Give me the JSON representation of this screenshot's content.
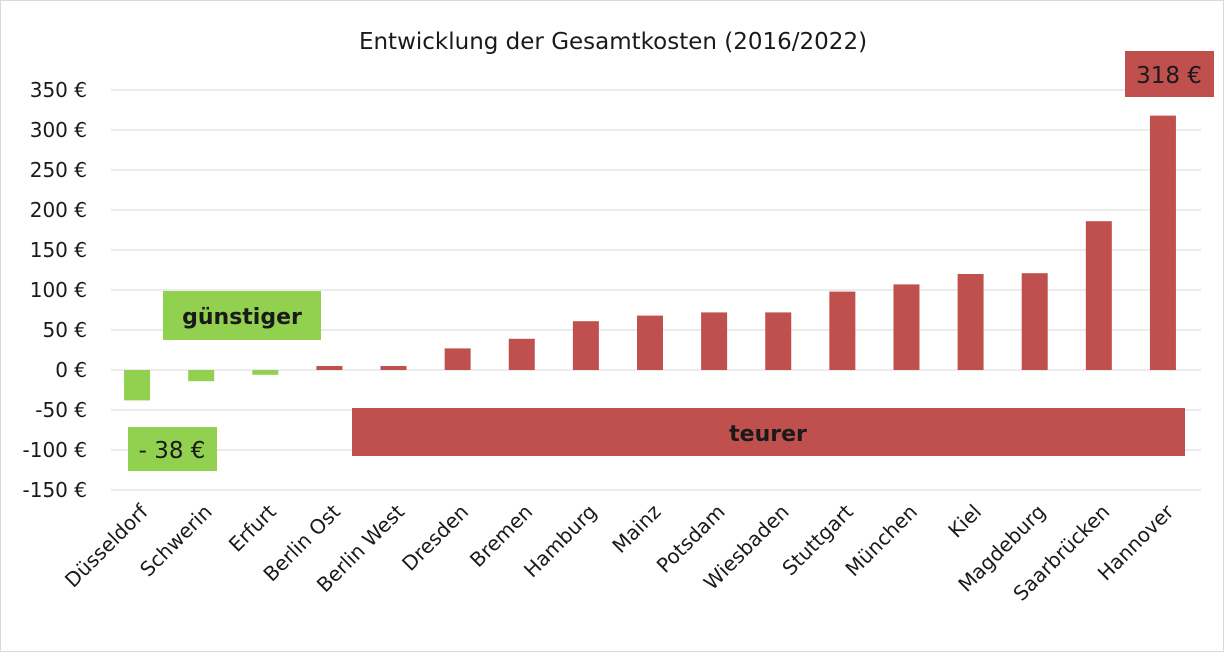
{
  "chart_data": {
    "type": "bar",
    "title": "Entwicklung der Gesamtkosten (2016/2022)",
    "xlabel": "",
    "ylabel": "",
    "ylim": [
      -150,
      350
    ],
    "ytick_values": [
      350,
      300,
      250,
      200,
      150,
      100,
      50,
      0,
      -50,
      -100,
      -150
    ],
    "ytick_labels": [
      "350 €",
      "300 €",
      "250 €",
      "200 €",
      "150 €",
      "100 €",
      "50 €",
      "0 €",
      "-50 €",
      "-100 €",
      "-150 €"
    ],
    "grid": true,
    "categories": [
      "Düsseldorf",
      "Schwerin",
      "Erfurt",
      "Berlin Ost",
      "Berlin West",
      "Dresden",
      "Bremen",
      "Hamburg",
      "Mainz",
      "Potsdam",
      "Wiesbaden",
      "Stuttgart",
      "München",
      "Kiel",
      "Magdeburg",
      "Saarbrücken",
      "Hannover"
    ],
    "values": [
      -38,
      -14,
      -6,
      5,
      5,
      27,
      39,
      61,
      68,
      72,
      72,
      98,
      107,
      120,
      121,
      186,
      318
    ],
    "colors": {
      "negative": "#92d050",
      "positive": "#c0504d"
    },
    "annotations": [
      {
        "text": "günstiger",
        "fill": "#92d050",
        "bold": true,
        "anchor": "box"
      },
      {
        "text": "teurer",
        "fill": "#c0504d",
        "bold": true,
        "anchor": "box"
      },
      {
        "text": "- 38 €",
        "fill": "#92d050",
        "bold": false,
        "anchor": "label"
      },
      {
        "text": "318 €",
        "fill": "#c0504d",
        "bold": false,
        "anchor": "label"
      }
    ]
  }
}
